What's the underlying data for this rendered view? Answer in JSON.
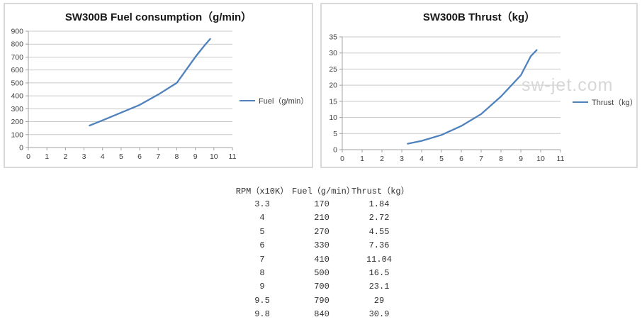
{
  "colors": {
    "line": "#4f81bd",
    "grid": "#c9c9c9",
    "axis": "#a0a0a0",
    "tick_label": "#404040",
    "panel_border": "#d9d9d9",
    "watermark": "#d7d7d7"
  },
  "chart_data": [
    {
      "type": "line",
      "title": "SW300B Fuel consumption（g/min）",
      "x": [
        3.3,
        4,
        5,
        6,
        7,
        8,
        9,
        9.5,
        9.8
      ],
      "series": [
        {
          "name": "Fuel（g/min）",
          "values": [
            170,
            210,
            270,
            330,
            410,
            500,
            700,
            790,
            840
          ]
        }
      ],
      "xlabel": "",
      "ylabel": "",
      "xlim": [
        0,
        11
      ],
      "ylim": [
        0,
        900
      ],
      "xtick": 1,
      "ytick": 100,
      "grid": true,
      "legend_position": "right",
      "watermark": ""
    },
    {
      "type": "line",
      "title": "SW300B Thrust（kg）",
      "x": [
        3.3,
        4,
        5,
        6,
        7,
        8,
        9,
        9.5,
        9.8
      ],
      "series": [
        {
          "name": "Thrust（kg）",
          "values": [
            1.84,
            2.72,
            4.55,
            7.36,
            11.04,
            16.5,
            23.1,
            29,
            30.9
          ]
        }
      ],
      "xlabel": "",
      "ylabel": "",
      "xlim": [
        0,
        11
      ],
      "ylim": [
        0,
        35
      ],
      "xtick": 1,
      "ytick": 5,
      "grid": true,
      "legend_position": "right",
      "watermark": "sw-jet.com"
    }
  ],
  "table": {
    "headers": [
      "RPM（x10K）",
      "Fuel（g/min）",
      "Thrust（kg）"
    ],
    "rows": [
      [
        "3.3",
        "170",
        "1.84"
      ],
      [
        "4",
        "210",
        "2.72"
      ],
      [
        "5",
        "270",
        "4.55"
      ],
      [
        "6",
        "330",
        "7.36"
      ],
      [
        "7",
        "410",
        "11.04"
      ],
      [
        "8",
        "500",
        "16.5"
      ],
      [
        "9",
        "700",
        "23.1"
      ],
      [
        "9.5",
        "790",
        "29"
      ],
      [
        "9.8",
        "840",
        "30.9"
      ]
    ]
  }
}
